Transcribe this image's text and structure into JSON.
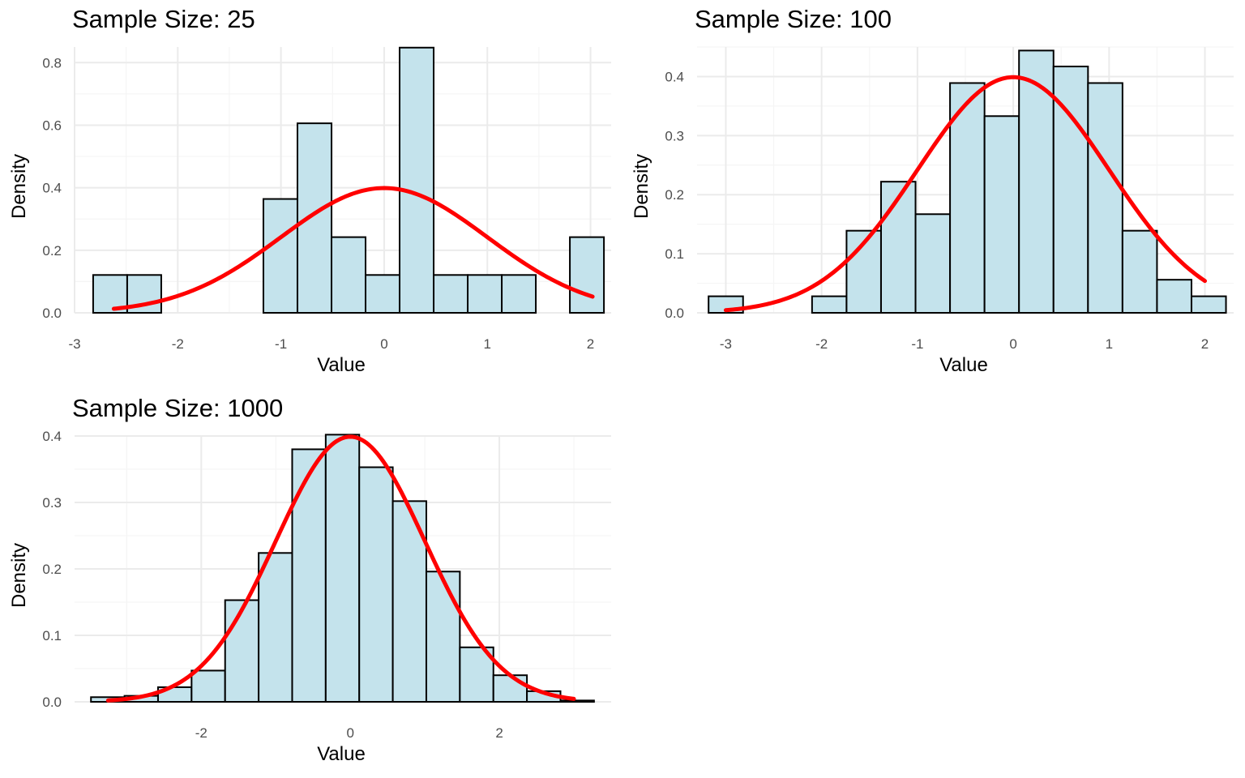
{
  "colors": {
    "bar_fill": "#c4e3ec",
    "bar_stroke": "#000000",
    "curve": "#ff0000",
    "grid_major": "#ebebeb",
    "grid_minor": "#f5f5f5"
  },
  "chart_data": [
    {
      "type": "bar",
      "title": "Sample Size: 25",
      "xlabel": "Value",
      "ylabel": "Density",
      "xlim": [
        -3,
        2.2
      ],
      "ylim": [
        0,
        0.85
      ],
      "xticks": [
        -3,
        -2,
        -1,
        0,
        1,
        2
      ],
      "yticks": [
        0.0,
        0.2,
        0.4,
        0.6,
        0.8
      ],
      "xtick_labels": [
        "-3",
        "-2",
        "-1",
        "0",
        "1",
        "2"
      ],
      "ytick_labels": [
        "0.0",
        "0.2",
        "0.4",
        "0.6",
        "0.8"
      ],
      "bin_edges": [
        -2.82,
        -2.49,
        -2.16,
        -1.83,
        -1.5,
        -1.17,
        -0.84,
        -0.51,
        -0.18,
        0.15,
        0.48,
        0.81,
        1.14,
        1.47,
        1.8,
        2.13
      ],
      "values": [
        0.121,
        0.121,
        0,
        0,
        0,
        0.364,
        0.606,
        0.242,
        0.121,
        0.848,
        0.121,
        0.121,
        0.121,
        0,
        0.242
      ],
      "curve": {
        "name": "normal density",
        "mean": 0,
        "sd": 1,
        "x_range": [
          -2.62,
          2.02
        ]
      }
    },
    {
      "type": "bar",
      "title": "Sample Size: 100",
      "xlabel": "Value",
      "ylabel": "Density",
      "xlim": [
        -3.3,
        2.3
      ],
      "ylim": [
        0,
        0.45
      ],
      "xticks": [
        -3,
        -2,
        -1,
        0,
        1,
        2
      ],
      "yticks": [
        0.0,
        0.1,
        0.2,
        0.3,
        0.4
      ],
      "xtick_labels": [
        "-3",
        "-2",
        "-1",
        "0",
        "1",
        "2"
      ],
      "ytick_labels": [
        "0.0",
        "0.1",
        "0.2",
        "0.3",
        "0.4"
      ],
      "bin_edges": [
        -3.18,
        -2.82,
        -2.46,
        -2.1,
        -1.74,
        -1.38,
        -1.02,
        -0.66,
        -0.3,
        0.06,
        0.42,
        0.78,
        1.14,
        1.5,
        1.86,
        2.22
      ],
      "values": [
        0.028,
        0,
        0,
        0.028,
        0.139,
        0.222,
        0.167,
        0.389,
        0.333,
        0.444,
        0.417,
        0.389,
        0.139,
        0.056,
        0.028
      ],
      "curve": {
        "name": "normal density",
        "mean": 0,
        "sd": 1,
        "x_range": [
          -3.0,
          2.0
        ]
      }
    },
    {
      "type": "bar",
      "title": "Sample Size: 1000",
      "xlabel": "Value",
      "ylabel": "Density",
      "xlim": [
        -3.7,
        3.5
      ],
      "ylim": [
        0,
        0.4
      ],
      "xticks": [
        -2,
        0,
        2
      ],
      "yticks": [
        0.0,
        0.1,
        0.2,
        0.3,
        0.4
      ],
      "xtick_labels": [
        "-2",
        "0",
        "2"
      ],
      "ytick_labels": [
        "0.0",
        "0.1",
        "0.2",
        "0.3",
        "0.4"
      ],
      "bin_edges": [
        -3.48,
        -3.03,
        -2.58,
        -2.13,
        -1.68,
        -1.23,
        -0.78,
        -0.33,
        0.12,
        0.57,
        1.02,
        1.47,
        1.92,
        2.37,
        2.82,
        3.27
      ],
      "values": [
        0.007,
        0.009,
        0.022,
        0.047,
        0.153,
        0.224,
        0.38,
        0.402,
        0.353,
        0.302,
        0.196,
        0.082,
        0.04,
        0.016,
        0.002
      ],
      "curve": {
        "name": "normal density",
        "mean": 0,
        "sd": 1,
        "x_range": [
          -3.25,
          3.0
        ]
      }
    }
  ]
}
